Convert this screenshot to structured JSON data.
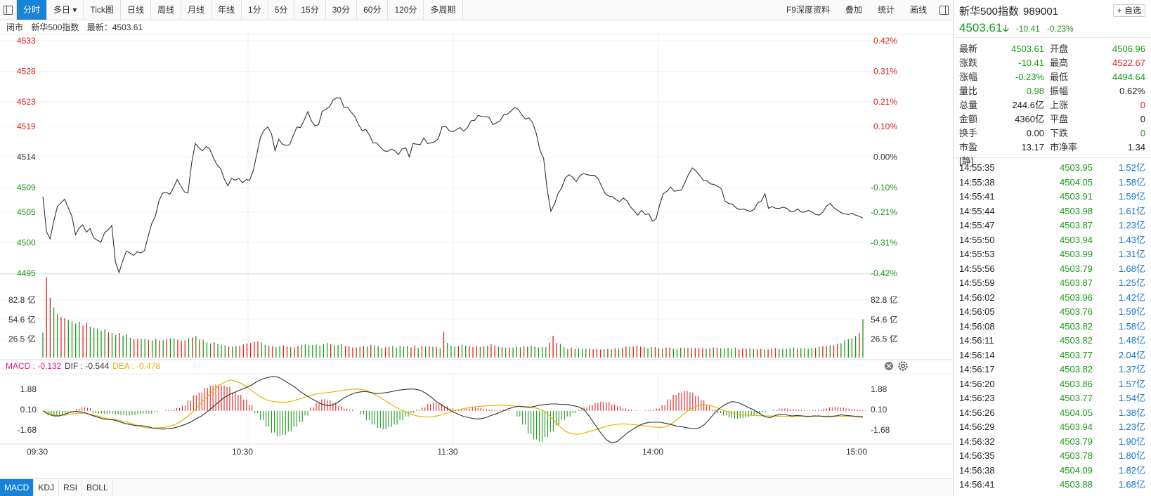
{
  "toolbar": {
    "tabs": [
      "分时",
      "多日 ▾",
      "Tick图",
      "日线",
      "周线",
      "月线",
      "年线",
      "1分",
      "5分",
      "15分",
      "30分",
      "60分",
      "120分",
      "多周期"
    ],
    "active_tab": 0,
    "right_items": [
      "F9深度资料",
      "叠加",
      "统计",
      "画线"
    ]
  },
  "status": {
    "state": "闭市",
    "name": "新华500指数",
    "latest_label": "最新：4503.61"
  },
  "chart_data": {
    "type": "line",
    "price": {
      "y_ticks": [
        4533,
        4528,
        4523,
        4519,
        4514,
        4509,
        4505,
        4500,
        4495
      ],
      "pct_ticks": [
        "0.42%",
        "0.31%",
        "0.21%",
        "0.10%",
        "0.00%",
        "-0.10%",
        "-0.21%",
        "-0.31%",
        "-0.42%"
      ],
      "pre_close": 4514.02,
      "ylim": [
        4495.1,
        4533.0
      ],
      "series": [
        4507.5,
        4501.8,
        4500.6,
        4503.5,
        4505.9,
        4506.5,
        4507.1,
        4505.7,
        4504.3,
        4501.3,
        4502.4,
        4502.9,
        4501.7,
        4502.3,
        4500.8,
        4500.4,
        4500.1,
        4501.6,
        4502.1,
        4502.8,
        4496.8,
        4495.1,
        4497.0,
        4498.6,
        4498.3,
        4497.9,
        4498.5,
        4498.3,
        4498.7,
        4501.0,
        4503.1,
        4504.3,
        4506.8,
        4508.1,
        4508.2,
        4507.9,
        4509.0,
        4510.3,
        4509.3,
        4508.3,
        4508.1,
        4513.0,
        4516.2,
        4515.5,
        4515.0,
        4515.7,
        4515.3,
        4513.9,
        4512.7,
        4512.1,
        4510.4,
        4509.3,
        4510.5,
        4510.2,
        4510.5,
        4509.8,
        4510.3,
        4510.2,
        4511.8,
        4514.6,
        4517.3,
        4518.4,
        4518.9,
        4517.8,
        4515.0,
        4516.9,
        4516.1,
        4515.9,
        4516.0,
        4517.5,
        4518.9,
        4518.8,
        4520.0,
        4521.4,
        4519.9,
        4519.1,
        4519.3,
        4521.5,
        4521.8,
        4522.2,
        4523.3,
        4523.7,
        4523.6,
        4522.1,
        4522.1,
        4521.3,
        4520.6,
        4519.3,
        4518.3,
        4518.5,
        4517.6,
        4516.3,
        4516.3,
        4515.6,
        4515.0,
        4514.9,
        4515.3,
        4515.0,
        4514.4,
        4515.3,
        4515.5,
        4514.0,
        4516.2,
        4516.1,
        4516.0,
        4517.1,
        4516.2,
        4516.3,
        4516.5,
        4517.0,
        4518.9,
        4519.0,
        4518.3,
        4518.1,
        4518.5,
        4518.8,
        4518.2,
        4518.8,
        4519.9,
        4520.0,
        4520.8,
        4520.6,
        4520.6,
        4520.5,
        4519.3,
        4519.6,
        4519.9,
        4520.9,
        4521.0,
        4521.5,
        4522.1,
        4521.8,
        4520.9,
        4520.2,
        4520.4,
        4519.6,
        4517.8,
        4515.1,
        4513.8,
        4508.6,
        4505.1,
        4506.3,
        4508.0,
        4509.0,
        4510.6,
        4511.1,
        4510.7,
        4510.0,
        4510.9,
        4511.3,
        4511.1,
        4511.0,
        4511.0,
        4510.5,
        4509.2,
        4508.0,
        4507.6,
        4507.5,
        4507.0,
        4506.7,
        4507.3,
        4506.8,
        4505.8,
        4505.2,
        4504.5,
        4505.3,
        4504.6,
        4504.7,
        4503.5,
        4503.9,
        4506.2,
        4508.0,
        4508.4,
        4509.1,
        4508.4,
        4508.5,
        4508.6,
        4509.9,
        4511.2,
        4512.2,
        4511.7,
        4511.0,
        4510.2,
        4510.1,
        4509.6,
        4509.5,
        4509.2,
        4508.8,
        4506.8,
        4506.4,
        4506.3,
        4505.7,
        4505.4,
        4505.5,
        4505.3,
        4505.1,
        4505.4,
        4506.5,
        4506.8,
        4508.0,
        4505.6,
        4505.9,
        4505.6,
        4505.6,
        4505.8,
        4505.6,
        4505.1,
        4505.1,
        4505.5,
        4505.0,
        4505.0,
        4505.3,
        4505.0,
        4504.6,
        4504.5,
        4505.0,
        4506.0,
        4506.4,
        4505.7,
        4505.3,
        4504.9,
        4504.7,
        4504.6,
        4504.8,
        4504.5,
        4504.3,
        4504.0
      ]
    },
    "volume": {
      "y_ticks": [
        "82.8 亿",
        "54.6 亿",
        "26.5 亿"
      ],
      "unit": "亿",
      "ylim": [
        0,
        117
      ],
      "values": [
        35.6,
        115.2,
        85.9,
        72.0,
        62.8,
        58.3,
        56.6,
        54.2,
        52.2,
        48.9,
        51.3,
        45.9,
        49.9,
        44.2,
        42.6,
        41.9,
        38.8,
        40.6,
        36.3,
        35.5,
        32.5,
        35.3,
        31.7,
        34.0,
        28.3,
        26.3,
        26.6,
        26.5,
        26.7,
        25.3,
        24.8,
        27.2,
        24.6,
        25.2,
        26.4,
        27.3,
        27.6,
        25.7,
        24.3,
        24.7,
        27.8,
        29.0,
        31.2,
        25.8,
        25.3,
        21.8,
        20.4,
        21.8,
        19.6,
        18.1,
        17.7,
        15.8,
        15.6,
        16.5,
        16.5,
        18.9,
        20.3,
        21.0,
        23.0,
        23.3,
        21.7,
        18.6,
        17.3,
        16.4,
        14.7,
        16.7,
        17.8,
        16.1,
        15.2,
        14.4,
        16.6,
        18.3,
        19.1,
        18.2,
        18.2,
        18.7,
        17.5,
        19.5,
        21.0,
        19.5,
        17.8,
        18.1,
        19.1,
        16.8,
        16.3,
        14.5,
        14.8,
        15.5,
        16.7,
        16.0,
        18.5,
        17.5,
        16.1,
        14.0,
        14.6,
        15.2,
        16.4,
        14.3,
        17.1,
        15.8,
        16.4,
        14.6,
        17.4,
        13.6,
        16.6,
        16.0,
        16.3,
        15.6,
        15.5,
        13.4,
        36.9,
        21.2,
        16.9,
        15.9,
        16.6,
        18.5,
        16.9,
        16.7,
        15.2,
        16.9,
        15.4,
        16.0,
        17.1,
        19.1,
        17.5,
        15.7,
        15.0,
        14.0,
        14.5,
        14.3,
        16.0,
        14.6,
        16.3,
        15.8,
        17.0,
        15.5,
        14.5,
        15.2,
        14.9,
        21.4,
        31.4,
        21.0,
        19.7,
        14.8,
        12.2,
        14.5,
        12.4,
        13.4,
        12.3,
        12.8,
        12.8,
        11.9,
        12.5,
        11.7,
        12.4,
        12.6,
        12.0,
        13.1,
        12.9,
        13.9,
        15.7,
        15.5,
        16.0,
        17.2,
        15.7,
        15.0,
        13.2,
        15.0,
        14.9,
        13.4,
        12.8,
        14.4,
        14.6,
        12.8,
        12.5,
        14.2,
        14.0,
        14.0,
        13.6,
        13.5,
        13.8,
        13.4,
        12.5,
        13.4,
        14.6,
        14.2,
        13.4,
        13.2,
        14.0,
        12.5,
        14.4,
        12.0,
        13.4,
        12.6,
        13.5,
        12.8,
        12.0,
        12.5,
        11.9,
        11.8,
        12.8,
        13.5,
        12.5,
        12.9,
        12.7,
        13.7,
        14.5,
        13.0,
        13.4,
        13.5,
        12.6,
        13.5,
        14.1,
        15.4,
        16.2,
        16.5,
        17.7,
        17.9,
        19.9,
        20.7,
        24.8,
        26.5,
        27.6,
        31.1,
        35.6,
        55.0
      ],
      "colors": "grrggrrggggrrgggggrggrgggrrggrggrgrggrrrgrgrgggrgggrggrrrrrrggrrggrrgrrggggggggrgggrrrrgrgrgggrrgggggrrgrgrgrgrgggrggrrrgrgrrgrgrggrgrgggggrrrgggrggggrrrrgrgrgrrgrrrrggrrgrrgggrgrrrrgrgrgggggrrrggrrgrrrgggggrggggrgrrgrrgggggrgrgrgrrrrrgrrgrrrrrrrrrrg"
    },
    "macd": {
      "legend": {
        "macd": "MACD : -0.132",
        "dif": "DIF : -0.544",
        "dea": "DEA : -0.478"
      },
      "y_ticks": [
        "1.88",
        "0.10",
        "-1.68"
      ],
      "ylim": [
        -2.9,
        3.3
      ],
      "dif": [
        0.0,
        -0.3,
        -0.45,
        -0.45,
        -0.3,
        -0.13,
        -0.05,
        -0.1,
        -0.2,
        -0.4,
        -0.55,
        -0.7,
        -0.75,
        -0.8,
        -0.95,
        -1.1,
        -1.2,
        -1.3,
        -1.3,
        -1.35,
        -1.5,
        -1.55,
        -1.6,
        -1.55,
        -1.5,
        -1.35,
        -1.2,
        -1.0,
        -0.7,
        -0.45,
        -0.1,
        0.3,
        0.7,
        1.1,
        1.4,
        1.6,
        1.8,
        2.0,
        2.2,
        2.5,
        2.75,
        2.9,
        3.0,
        2.95,
        2.7,
        2.4,
        2.1,
        1.7,
        1.4,
        1.1,
        0.85,
        0.6,
        0.45,
        0.5,
        0.75,
        1.1,
        1.35,
        1.55,
        1.65,
        1.7,
        1.6,
        1.5,
        1.55,
        1.6,
        1.7,
        1.8,
        1.85,
        1.9,
        1.9,
        1.8,
        1.55,
        1.2,
        0.8,
        0.5,
        0.2,
        -0.1,
        -0.3,
        -0.5,
        -0.6,
        -0.7,
        -0.7,
        -0.6,
        -0.4,
        -0.25,
        -0.05,
        0.15,
        0.3,
        0.4,
        0.35,
        0.3,
        0.4,
        0.5,
        0.55,
        0.6,
        0.6,
        0.55,
        0.55,
        0.45,
        0.35,
        0.1,
        -0.5,
        -1.2,
        -1.9,
        -2.5,
        -2.8,
        -2.7,
        -2.3,
        -1.9,
        -1.6,
        -1.3,
        -1.1,
        -1.0,
        -1.0,
        -1.0,
        -1.1,
        -1.2,
        -1.35,
        -1.4,
        -1.5,
        -1.55,
        -1.5,
        -1.2,
        -0.7,
        -0.1,
        0.3,
        0.6,
        0.8,
        0.75,
        0.55,
        0.3,
        0.1,
        -0.2,
        -0.5,
        -0.6,
        -0.4,
        -0.3,
        -0.35,
        -0.45,
        -0.4,
        -0.45,
        -0.5,
        -0.45,
        -0.45,
        -0.5,
        -0.5,
        -0.45,
        -0.35,
        -0.4,
        -0.45,
        -0.5,
        -0.55
      ],
      "dea": [
        0.0,
        -0.15,
        -0.35,
        -0.4,
        -0.38,
        -0.3,
        -0.22,
        -0.2,
        -0.25,
        -0.35,
        -0.45,
        -0.6,
        -0.7,
        -0.75,
        -0.85,
        -0.95,
        -1.1,
        -1.25,
        -1.4,
        -1.48,
        -1.5,
        -1.48,
        -1.45,
        -1.35,
        -1.2,
        -0.95,
        -0.6,
        -0.2,
        0.3,
        0.8,
        1.3,
        1.8,
        2.2,
        2.5,
        2.7,
        2.6,
        2.4,
        2.1,
        1.75,
        1.4,
        1.1,
        0.9,
        0.8,
        0.75,
        0.75,
        0.8,
        0.95,
        1.1,
        1.25,
        1.4,
        1.5,
        1.55,
        1.6,
        1.68,
        1.75,
        1.82,
        1.88,
        1.9,
        1.85,
        1.72,
        1.5,
        1.25,
        0.95,
        0.65,
        0.35,
        0.1,
        -0.1,
        -0.3,
        -0.45,
        -0.5,
        -0.55,
        -0.5,
        -0.4,
        -0.25,
        -0.1,
        0.05,
        0.15,
        0.25,
        0.32,
        0.38,
        0.42,
        0.45,
        0.48,
        0.5,
        0.48,
        0.45,
        0.4,
        0.38,
        0.36,
        0.3,
        0.2,
        0.0,
        -0.4,
        -0.9,
        -1.4,
        -1.8,
        -2.0,
        -2.05,
        -2.0,
        -1.85,
        -1.7,
        -1.55,
        -1.4,
        -1.28,
        -1.2,
        -1.15,
        -1.15,
        -1.2,
        -1.25,
        -1.3,
        -1.38,
        -1.42,
        -1.45,
        -1.42,
        -1.2,
        -0.85,
        -0.45,
        -0.05,
        0.25,
        0.45,
        0.55,
        0.5,
        0.35,
        0.15,
        0.0,
        -0.15,
        -0.28,
        -0.35,
        -0.38,
        -0.4,
        -0.42,
        -0.44,
        -0.45,
        -0.46,
        -0.47,
        -0.48,
        -0.48,
        -0.48,
        -0.47,
        -0.47,
        -0.47,
        -0.46,
        -0.46,
        -0.46,
        -0.47,
        -0.47,
        -0.47,
        -0.47,
        -0.47,
        -0.48
      ],
      "hist": [
        0.0,
        -0.35,
        -0.45,
        -0.38,
        -0.25,
        -0.1,
        0.15,
        0.3,
        0.25,
        -0.2,
        -0.25,
        -0.3,
        -0.25,
        -0.3,
        -0.35,
        -0.4,
        -0.35,
        -0.3,
        -0.25,
        -0.25,
        -0.1,
        0.0,
        0.05,
        0.1,
        0.25,
        0.45,
        0.9,
        1.35,
        1.6,
        2.0,
        2.2,
        2.3,
        2.2,
        2.1,
        1.6,
        1.4,
        1.0,
        0.5,
        -0.2,
        -0.8,
        -1.4,
        -1.9,
        -2.2,
        -2.1,
        -1.8,
        -1.4,
        -1.0,
        -0.4,
        0.3,
        0.7,
        1.0,
        0.9,
        0.7,
        0.4,
        0.2,
        0.1,
        0.0,
        -0.3,
        -0.8,
        -1.2,
        -1.5,
        -1.6,
        -1.4,
        -1.2,
        -0.8,
        -0.5,
        -0.2,
        0.1,
        0.3,
        0.6,
        0.7,
        0.6,
        0.4,
        0.2,
        0.1,
        0.15,
        0.2,
        0.3,
        0.25,
        0.15,
        0.1,
        0.05,
        0.1,
        0.05,
        0.0,
        -0.5,
        -1.2,
        -2.0,
        -2.5,
        -2.7,
        -2.3,
        -1.8,
        -1.3,
        -0.8,
        -0.5,
        -0.2,
        0.1,
        0.3,
        0.5,
        0.7,
        0.8,
        0.75,
        0.55,
        0.4,
        0.2,
        0.1,
        0.05,
        0.0,
        0.05,
        0.1,
        0.2,
        0.5,
        1.0,
        1.4,
        1.6,
        1.75,
        1.6,
        1.3,
        0.9,
        0.5,
        0.1,
        -0.2,
        -0.4,
        -0.6,
        -0.7,
        -0.65,
        -0.55,
        -0.4,
        -0.3,
        -0.1,
        0.0,
        0.1,
        0.2,
        0.2,
        0.15,
        0.1,
        0.1,
        0.05,
        0.05,
        0.1,
        0.2,
        0.3,
        0.35,
        0.3,
        0.2,
        0.15,
        0.1,
        0.05
      ]
    },
    "time_ticks": [
      "09:30",
      "10:30",
      "11:30",
      "14:00",
      "15:00"
    ]
  },
  "bottom_tabs": [
    "MACD",
    "KDJ",
    "RSI",
    "BOLL"
  ],
  "panel": {
    "name": "新华500指数",
    "code": "989001",
    "add_label": "+ 自选",
    "price": "4503.61",
    "change": "-10.41",
    "change_pct": "-0.23%",
    "quote": [
      {
        "l": "最新",
        "v": "4503.61",
        "vc": "green",
        "l2": "开盘",
        "v2": "4506.96",
        "v2c": "green"
      },
      {
        "l": "涨跌",
        "v": "-10.41",
        "vc": "green",
        "l2": "最高",
        "v2": "4522.67",
        "v2c": "red"
      },
      {
        "l": "涨幅",
        "v": "-0.23%",
        "vc": "green",
        "l2": "最低",
        "v2": "4494.64",
        "v2c": "green"
      },
      {
        "l": "量比",
        "v": "0.98",
        "vc": "green",
        "l2": "振幅",
        "v2": "0.62%",
        "v2c": "black"
      },
      {
        "l": "总量",
        "v": "244.6亿",
        "vc": "black",
        "l2": "上涨",
        "v2": "0",
        "v2c": "red"
      },
      {
        "l": "金额",
        "v": "4360亿",
        "vc": "black",
        "l2": "平盘",
        "v2": "0",
        "v2c": "black"
      },
      {
        "l": "换手",
        "v": "0.00",
        "vc": "black",
        "l2": "下跌",
        "v2": "0",
        "v2c": "green"
      },
      {
        "l": "市盈[静]",
        "v": "13.17",
        "vc": "black",
        "l2": "市净率",
        "v2": "1.34",
        "v2c": "black"
      }
    ],
    "ticks": [
      {
        "t": "14:55:35",
        "p": "4503.95",
        "v": "1.52亿"
      },
      {
        "t": "14:55:38",
        "p": "4504.05",
        "v": "1.58亿"
      },
      {
        "t": "14:55:41",
        "p": "4503.91",
        "v": "1.59亿"
      },
      {
        "t": "14:55:44",
        "p": "4503.98",
        "v": "1.61亿"
      },
      {
        "t": "14:55:47",
        "p": "4503.87",
        "v": "1.23亿"
      },
      {
        "t": "14:55:50",
        "p": "4503.94",
        "v": "1.43亿"
      },
      {
        "t": "14:55:53",
        "p": "4503.99",
        "v": "1.31亿"
      },
      {
        "t": "14:55:56",
        "p": "4503.79",
        "v": "1.68亿"
      },
      {
        "t": "14:55:59",
        "p": "4503.87",
        "v": "1.25亿"
      },
      {
        "t": "14:56:02",
        "p": "4503.96",
        "v": "1.42亿"
      },
      {
        "t": "14:56:05",
        "p": "4503.76",
        "v": "1.59亿"
      },
      {
        "t": "14:56:08",
        "p": "4503.82",
        "v": "1.58亿"
      },
      {
        "t": "14:56:11",
        "p": "4503.82",
        "v": "1.48亿"
      },
      {
        "t": "14:56:14",
        "p": "4503.77",
        "v": "2.04亿"
      },
      {
        "t": "14:56:17",
        "p": "4503.82",
        "v": "1.37亿"
      },
      {
        "t": "14:56:20",
        "p": "4503.86",
        "v": "1.57亿"
      },
      {
        "t": "14:56:23",
        "p": "4503.77",
        "v": "1.54亿"
      },
      {
        "t": "14:56:26",
        "p": "4504.05",
        "v": "1.38亿"
      },
      {
        "t": "14:56:29",
        "p": "4503.94",
        "v": "1.23亿"
      },
      {
        "t": "14:56:32",
        "p": "4503.79",
        "v": "1.90亿"
      },
      {
        "t": "14:56:35",
        "p": "4503.78",
        "v": "1.80亿"
      },
      {
        "t": "14:56:38",
        "p": "4504.09",
        "v": "1.82亿"
      },
      {
        "t": "14:56:41",
        "p": "4503.88",
        "v": "1.68亿"
      }
    ]
  },
  "colors": {
    "up": "#e02020",
    "down": "#1a9a1a",
    "accent": "#1a83d6",
    "line": "#333333",
    "dea": "#e8b400",
    "macd_label": "#e0198c"
  }
}
